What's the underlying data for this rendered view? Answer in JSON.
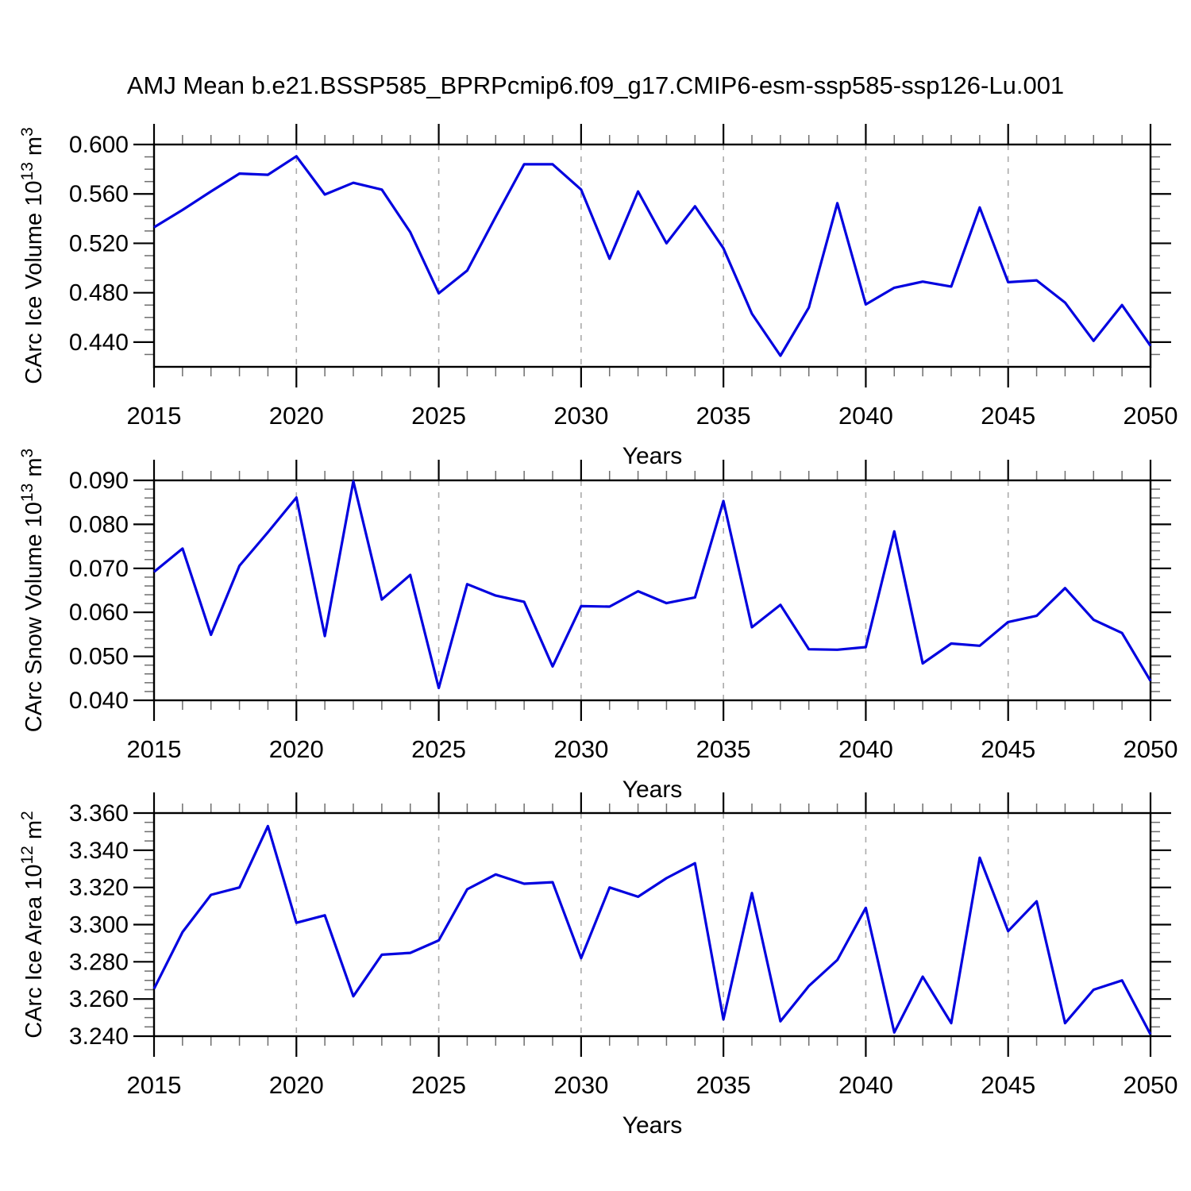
{
  "page": {
    "title": "AMJ Mean b.e21.BSSP585_BPRPcmip6.f09_g17.CMIP6-esm-ssp585-ssp126-Lu.001"
  },
  "style": {
    "background": "#ffffff",
    "line_color": "#0202df",
    "axis_color": "#000000",
    "major_tick_color": "#000000",
    "minor_tick_color": "#6e6e6e",
    "grid_color": "#aaaaaa",
    "text_color": "#000000"
  },
  "chart_data": [
    {
      "type": "line",
      "name": "carc-ice-volume",
      "title": "",
      "ylabel": "CArc Ice Volume 10^13 m^3",
      "ylabel_parts": [
        {
          "t": "CArc Ice Volume 10"
        },
        {
          "t": "13",
          "sup": true
        },
        {
          "t": " m"
        },
        {
          "t": "3",
          "sup": true
        }
      ],
      "xlabel": "Years",
      "legend": "none",
      "grid": "vertical-dashed",
      "x": [
        2015,
        2016,
        2017,
        2018,
        2019,
        2020,
        2021,
        2022,
        2023,
        2024,
        2025,
        2026,
        2027,
        2028,
        2029,
        2030,
        2031,
        2032,
        2033,
        2034,
        2035,
        2036,
        2037,
        2038,
        2039,
        2040,
        2041,
        2042,
        2043,
        2044,
        2045,
        2046,
        2047,
        2048,
        2049,
        2050
      ],
      "values": [
        0.533,
        0.547,
        0.562,
        0.5765,
        0.5755,
        0.5905,
        0.5595,
        0.569,
        0.5635,
        0.529,
        0.4795,
        0.498,
        0.5415,
        0.584,
        0.584,
        0.5635,
        0.5075,
        0.562,
        0.52,
        0.55,
        0.516,
        0.463,
        0.429,
        0.468,
        0.5525,
        0.4705,
        0.484,
        0.489,
        0.485,
        0.549,
        0.4885,
        0.49,
        0.472,
        0.441,
        0.47,
        0.437
      ],
      "xlim": [
        2015,
        2050
      ],
      "ylim": [
        0.42,
        0.6
      ],
      "yticks": [
        0.44,
        0.48,
        0.52,
        0.56,
        0.6
      ],
      "ytick_labels": [
        "0.440",
        "0.480",
        "0.520",
        "0.560",
        "0.600"
      ],
      "yminor_step": 0.01,
      "xticks": [
        2015,
        2020,
        2025,
        2030,
        2035,
        2040,
        2045,
        2050
      ],
      "xtick_labels": [
        "2015",
        "2020",
        "2025",
        "2030",
        "2035",
        "2040",
        "2045",
        "2050"
      ],
      "xminor_step": 1,
      "gridlines_x": [
        2020,
        2025,
        2030,
        2035,
        2040,
        2045
      ]
    },
    {
      "type": "line",
      "name": "carc-snow-volume",
      "title": "",
      "ylabel": "CArc Snow Volume 10^13 m^3",
      "ylabel_parts": [
        {
          "t": "CArc Snow Volume 10"
        },
        {
          "t": "13",
          "sup": true
        },
        {
          "t": " m"
        },
        {
          "t": "3",
          "sup": true
        }
      ],
      "xlabel": "Years",
      "legend": "none",
      "grid": "vertical-dashed",
      "x": [
        2015,
        2016,
        2017,
        2018,
        2019,
        2020,
        2021,
        2022,
        2023,
        2024,
        2025,
        2026,
        2027,
        2028,
        2029,
        2030,
        2031,
        2032,
        2033,
        2034,
        2035,
        2036,
        2037,
        2038,
        2039,
        2040,
        2041,
        2042,
        2043,
        2044,
        2045,
        2046,
        2047,
        2048,
        2049,
        2050
      ],
      "values": [
        0.0692,
        0.0745,
        0.0549,
        0.0706,
        0.0782,
        0.0861,
        0.0546,
        0.0898,
        0.0629,
        0.0685,
        0.0428,
        0.0664,
        0.0638,
        0.0624,
        0.0477,
        0.0614,
        0.0613,
        0.0648,
        0.0621,
        0.0634,
        0.0853,
        0.0566,
        0.0617,
        0.0516,
        0.0515,
        0.0521,
        0.0784,
        0.0484,
        0.0529,
        0.0524,
        0.0578,
        0.0592,
        0.0655,
        0.0583,
        0.0553,
        0.0444
      ],
      "xlim": [
        2015,
        2050
      ],
      "ylim": [
        0.04,
        0.09
      ],
      "yticks": [
        0.04,
        0.05,
        0.06,
        0.07,
        0.08,
        0.09
      ],
      "ytick_labels": [
        "0.040",
        "0.050",
        "0.060",
        "0.070",
        "0.080",
        "0.090"
      ],
      "yminor_step": 0.002,
      "xticks": [
        2015,
        2020,
        2025,
        2030,
        2035,
        2040,
        2045,
        2050
      ],
      "xtick_labels": [
        "2015",
        "2020",
        "2025",
        "2030",
        "2035",
        "2040",
        "2045",
        "2050"
      ],
      "xminor_step": 1,
      "gridlines_x": [
        2020,
        2025,
        2030,
        2035,
        2040,
        2045
      ]
    },
    {
      "type": "line",
      "name": "carc-ice-area",
      "title": "",
      "ylabel": "CArc Ice Area 10^12 m^2",
      "ylabel_parts": [
        {
          "t": "CArc Ice Area 10"
        },
        {
          "t": "12",
          "sup": true
        },
        {
          "t": " m"
        },
        {
          "t": "2",
          "sup": true
        }
      ],
      "xlabel": "Years",
      "legend": "none",
      "grid": "vertical-dashed",
      "x": [
        2015,
        2016,
        2017,
        2018,
        2019,
        2020,
        2021,
        2022,
        2023,
        2024,
        2025,
        2026,
        2027,
        2028,
        2029,
        2030,
        2031,
        2032,
        2033,
        2034,
        2035,
        2036,
        2037,
        2038,
        2039,
        2040,
        2041,
        2042,
        2043,
        2044,
        2045,
        2046,
        2047,
        2048,
        2049,
        2050
      ],
      "values": [
        3.2655,
        3.296,
        3.316,
        3.32,
        3.353,
        3.301,
        3.305,
        3.2615,
        3.2838,
        3.2848,
        3.2915,
        3.319,
        3.327,
        3.322,
        3.3228,
        3.282,
        3.32,
        3.315,
        3.325,
        3.333,
        3.249,
        3.317,
        3.248,
        3.267,
        3.281,
        3.309,
        3.242,
        3.272,
        3.247,
        3.336,
        3.2965,
        3.3125,
        3.247,
        3.265,
        3.27,
        3.241
      ],
      "xlim": [
        2015,
        2050
      ],
      "ylim": [
        3.24,
        3.36
      ],
      "yticks": [
        3.24,
        3.26,
        3.28,
        3.3,
        3.32,
        3.34,
        3.36
      ],
      "ytick_labels": [
        "3.240",
        "3.260",
        "3.280",
        "3.300",
        "3.320",
        "3.340",
        "3.360"
      ],
      "yminor_step": 0.005,
      "xticks": [
        2015,
        2020,
        2025,
        2030,
        2035,
        2040,
        2045,
        2050
      ],
      "xtick_labels": [
        "2015",
        "2020",
        "2025",
        "2030",
        "2035",
        "2040",
        "2045",
        "2050"
      ],
      "xminor_step": 1,
      "gridlines_x": [
        2020,
        2025,
        2030,
        2035,
        2040,
        2045
      ]
    }
  ]
}
